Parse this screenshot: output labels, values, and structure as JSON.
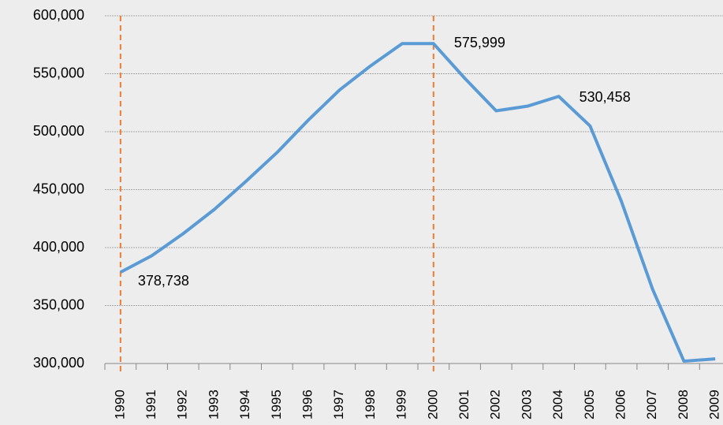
{
  "chart_data": {
    "type": "line",
    "categories": [
      "1990",
      "1991",
      "1992",
      "1993",
      "1994",
      "1995",
      "1996",
      "1997",
      "1998",
      "1999",
      "2000",
      "2001",
      "2002",
      "2003",
      "2004",
      "2005",
      "2006",
      "2007",
      "2008",
      "2009"
    ],
    "values": [
      378738,
      393000,
      412000,
      433000,
      457000,
      482000,
      510000,
      536000,
      557000,
      576000,
      575999,
      546000,
      518000,
      522000,
      530458,
      505000,
      440000,
      364000,
      302000,
      304000
    ],
    "value_labels": [
      "378,738",
      null,
      null,
      null,
      null,
      null,
      null,
      null,
      null,
      null,
      "575,999",
      null,
      null,
      null,
      "530,458",
      null,
      null,
      null,
      null,
      null
    ],
    "color": "#5b9bd5",
    "ylim": [
      300000,
      600000
    ],
    "yticks": [
      {
        "value": 300000,
        "label": "300,000"
      },
      {
        "value": 350000,
        "label": "350,000"
      },
      {
        "value": 400000,
        "label": "400,000"
      },
      {
        "value": 450000,
        "label": "450,000"
      },
      {
        "value": 500000,
        "label": "500,000"
      },
      {
        "value": 550000,
        "label": "550,000"
      },
      {
        "value": 600000,
        "label": "600,000"
      }
    ],
    "grid": true
  }
}
